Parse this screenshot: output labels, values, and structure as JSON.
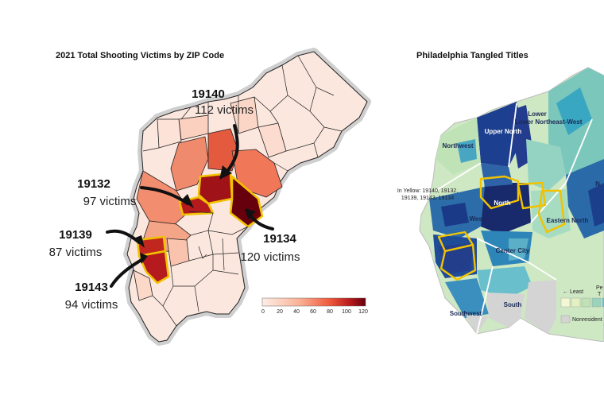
{
  "left_map": {
    "title": "2021 Total Shooting Victims by ZIP Code",
    "callouts": [
      {
        "zip": "19140",
        "victims": "112 victims"
      },
      {
        "zip": "19132",
        "victims": "97 victims"
      },
      {
        "zip": "19139",
        "victims": "87 victims"
      },
      {
        "zip": "19134",
        "victims": "120 victims"
      },
      {
        "zip": "19143",
        "victims": "94 victims"
      }
    ],
    "legend": {
      "ticks": [
        "0",
        "20",
        "40",
        "60",
        "80",
        "100",
        "120"
      ],
      "color_low": "#fdeee6",
      "color_high": "#67000d"
    },
    "highlight_color": "#f2c200"
  },
  "right_map": {
    "title": "Philadelphia Tangled Titles",
    "regions": [
      "Lower Northeast-West",
      "Upper North",
      "Northwest",
      "West",
      "Center City",
      "South",
      "Southwest",
      "Eastern North",
      "N"
    ],
    "region_north": "North",
    "yellow_note_line1": "In Yellow: 19140, 19132,",
    "yellow_note_line2": "19139, 19143, 19134",
    "legend_least": "← Least",
    "legend_pe": "Pe",
    "legend_t": "T",
    "legend_nonresidential": "Nonresident"
  }
}
